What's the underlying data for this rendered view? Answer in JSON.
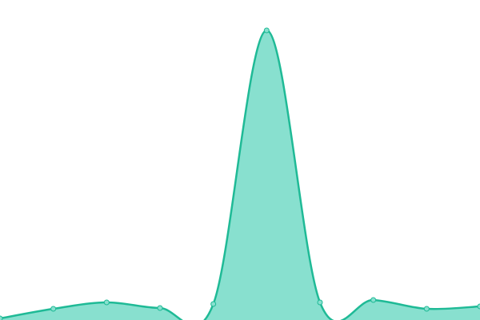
{
  "chart_data": {
    "type": "area",
    "categories": [
      null,
      null,
      null,
      null,
      null,
      null,
      null,
      null,
      null,
      null
    ],
    "series": [
      {
        "color": "#1fba96",
        "fill": "#88e0cf",
        "values": [
          2,
          14,
          22,
          15,
          20,
          362,
          22,
          25,
          14,
          17
        ]
      }
    ],
    "ylim": [
      0,
      400
    ]
  }
}
